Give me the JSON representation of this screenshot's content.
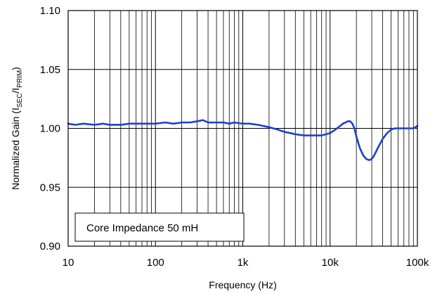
{
  "chart_data": {
    "type": "line",
    "title": "",
    "xlabel": "Frequency (Hz)",
    "ylabel": {
      "prefix": "Normalized Gain  (I",
      "sub1": "SEC",
      "mid": "/I",
      "sub2": "PRIM",
      "suffix": ")"
    },
    "x_scale": "log",
    "xlim": [
      10,
      100000
    ],
    "ylim": [
      0.9,
      1.1
    ],
    "x_ticks": [
      {
        "value": 10,
        "label": "10"
      },
      {
        "value": 100,
        "label": "100"
      },
      {
        "value": 1000,
        "label": "1k"
      },
      {
        "value": 10000,
        "label": "10k"
      },
      {
        "value": 100000,
        "label": "100k"
      }
    ],
    "y_ticks": [
      {
        "value": 0.9,
        "label": "0.90"
      },
      {
        "value": 0.95,
        "label": "0.95"
      },
      {
        "value": 1.0,
        "label": "1.00"
      },
      {
        "value": 1.05,
        "label": "1.05"
      },
      {
        "value": 1.1,
        "label": "1.10"
      }
    ],
    "grid": true,
    "annotation": "Core Impedance 50 mH",
    "line_color": "#1f3fcf",
    "series": [
      {
        "x": [
          10,
          12,
          15,
          20,
          25,
          30,
          40,
          50,
          60,
          80,
          100,
          130,
          160,
          200,
          250,
          300,
          350,
          400,
          500,
          600,
          700,
          800,
          1000,
          1200,
          1500,
          2000,
          2500,
          3000,
          3500,
          4000,
          5000,
          6000,
          7000,
          8000,
          9000,
          10000,
          11000,
          12000,
          13000,
          14000,
          15000,
          16000,
          17000,
          18000,
          19000,
          20000,
          22000,
          24000,
          26000,
          28000,
          30000,
          32000,
          35000,
          40000,
          45000,
          50000,
          55000,
          60000,
          70000,
          80000,
          90000,
          100000
        ],
        "y": [
          1.004,
          1.003,
          1.004,
          1.003,
          1.004,
          1.003,
          1.003,
          1.004,
          1.004,
          1.004,
          1.004,
          1.005,
          1.004,
          1.005,
          1.005,
          1.006,
          1.007,
          1.005,
          1.005,
          1.005,
          1.004,
          1.005,
          1.004,
          1.004,
          1.003,
          1.001,
          0.999,
          0.997,
          0.996,
          0.995,
          0.994,
          0.994,
          0.994,
          0.994,
          0.995,
          0.996,
          0.998,
          1.0,
          1.002,
          1.004,
          1.005,
          1.006,
          1.006,
          1.004,
          1.0,
          0.993,
          0.983,
          0.977,
          0.974,
          0.973,
          0.974,
          0.977,
          0.983,
          0.991,
          0.996,
          0.999,
          1.0,
          1.0,
          1.0,
          1.0,
          1.0,
          1.002
        ]
      }
    ]
  }
}
